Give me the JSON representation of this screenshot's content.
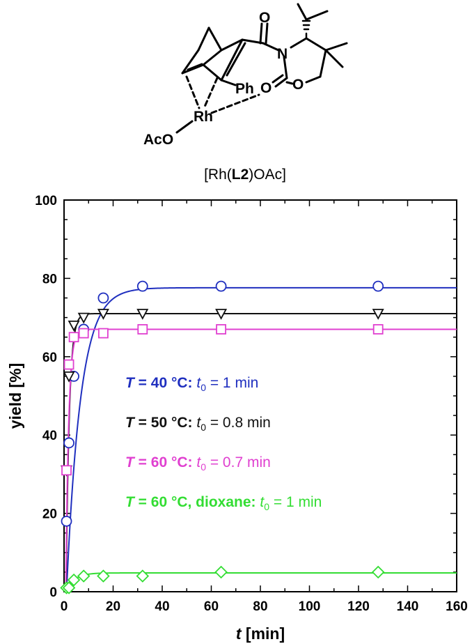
{
  "structure": {
    "labels": {
      "carbonyl_o1": "O",
      "nitrogen": "N",
      "ring_o": "O",
      "carbonyl_o2": "O",
      "phenyl": "Ph",
      "rhodium": "Rh",
      "acetate": "AcO"
    },
    "caption_pre": "[Rh(",
    "caption_bold": "L2",
    "caption_post": ")OAc]"
  },
  "chart_data": {
    "type": "scatter",
    "xlim": [
      0,
      160
    ],
    "ylim": [
      0,
      100
    ],
    "x_ticks": [
      "0",
      "20",
      "40",
      "60",
      "80",
      "100",
      "120",
      "140",
      "160"
    ],
    "y_ticks": [
      "0",
      "20",
      "40",
      "60",
      "80",
      "100"
    ],
    "xlabel_italic": "t",
    "xlabel_rest": " [min]",
    "ylabel": "yield [%]",
    "series": [
      {
        "color": "#1f2fbf",
        "marker": "circle",
        "x": [
          1,
          2,
          4,
          8,
          16,
          32,
          64,
          128
        ],
        "y": [
          18,
          38,
          55,
          67,
          75,
          78,
          78,
          78
        ],
        "fit": {
          "ymax": 77.6,
          "t0": 1,
          "k": 0.175
        }
      },
      {
        "color": "#111111",
        "marker": "triangle-down",
        "x": [
          1,
          2,
          4,
          8,
          16,
          32,
          64,
          128
        ],
        "y": [
          31,
          55,
          68,
          70,
          71,
          71,
          71,
          71
        ],
        "fit": {
          "ymax": 71,
          "t0": 0.8,
          "k": 0.75
        }
      },
      {
        "color": "#e040d0",
        "marker": "square",
        "x": [
          1,
          2,
          4,
          8,
          16,
          32,
          64,
          128
        ],
        "y": [
          31,
          58,
          65,
          66,
          66,
          67,
          67,
          67
        ],
        "fit": {
          "ymax": 67,
          "t0": 0.7,
          "k": 0.85
        }
      },
      {
        "color": "#33dd33",
        "marker": "diamond",
        "x": [
          1,
          2,
          4,
          8,
          16,
          32,
          64,
          128
        ],
        "y": [
          1,
          1,
          3,
          4,
          4,
          4,
          5,
          5
        ],
        "fit": {
          "ymax": 4.8,
          "t0": 1,
          "k": 0.3
        }
      }
    ],
    "annotations": [
      {
        "color": "#1f2fbf",
        "bold": "T = 40 °C:",
        "t": "t",
        "sub": "0",
        "rest": " = 1 min"
      },
      {
        "color": "#111111",
        "bold": "T = 50 °C:",
        "t": "t",
        "sub": "0",
        "rest": " = 0.8 min"
      },
      {
        "color": "#e040d0",
        "bold": "T = 60 °C:",
        "t": "t",
        "sub": "0",
        "rest": " = 0.7 min"
      },
      {
        "color": "#33dd33",
        "bold": "T = 60 °C, dioxane:",
        "t": "t",
        "sub": "0",
        "rest": " = 1 min"
      }
    ]
  }
}
